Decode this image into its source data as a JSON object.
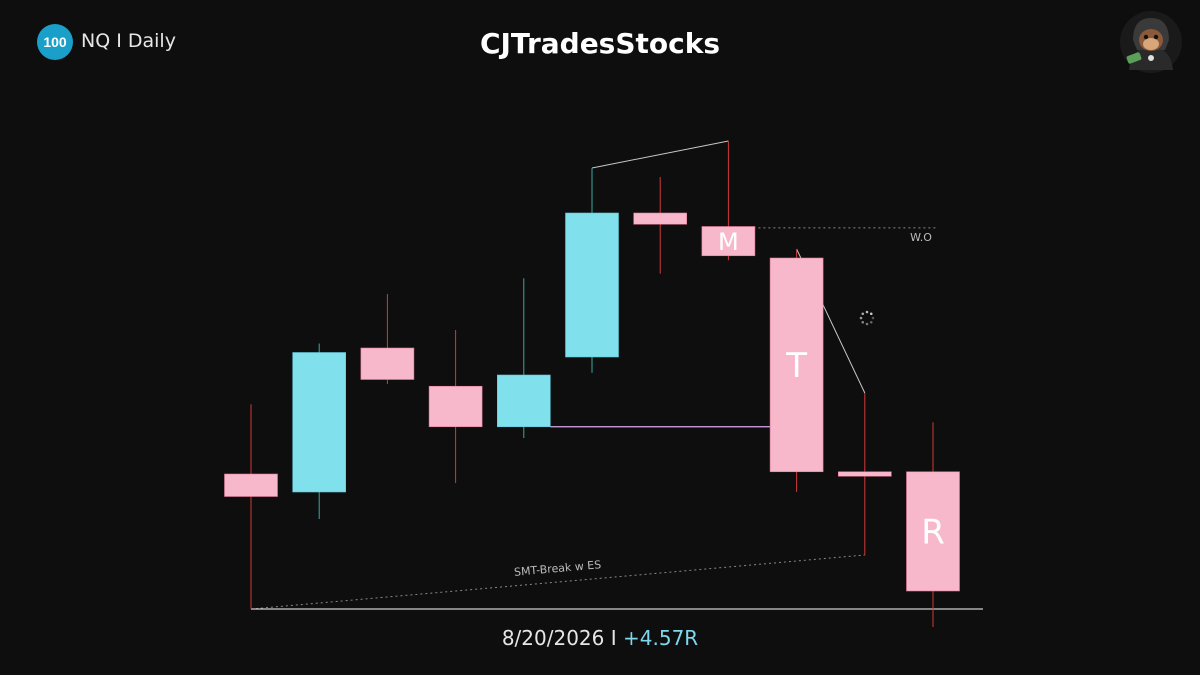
{
  "header": {
    "badge": "100",
    "symbol": "NQ",
    "separator": "I",
    "timeframe": "Daily",
    "title": "CJTradesStocks"
  },
  "footer": {
    "date": "8/20/2026",
    "separator": "I",
    "result": "+4.57R"
  },
  "colors": {
    "background": "#0e0e0e",
    "bull": "#80e0ec",
    "bear": "#f8b8cc",
    "wick_bull": "#3aa8a0",
    "wick_bear": "#d03a3a",
    "badge": "#1aa0c8",
    "result": "#7fd7ee"
  },
  "chart_data": {
    "type": "candlestick",
    "title": "CJTradesStocks",
    "xlabel": "",
    "ylabel": "",
    "ylim": [
      0,
      100
    ],
    "candles": [
      {
        "index": 0,
        "open": 25.0,
        "high": 45.5,
        "low": 0.0,
        "close": 30.0,
        "direction": "bear"
      },
      {
        "index": 1,
        "open": 26.0,
        "high": 59.0,
        "low": 20.0,
        "close": 57.0,
        "direction": "bull"
      },
      {
        "index": 2,
        "open": 58.0,
        "high": 70.0,
        "low": 50.0,
        "close": 51.0,
        "direction": "bear"
      },
      {
        "index": 3,
        "open": 49.5,
        "high": 62.0,
        "low": 28.0,
        "close": 40.5,
        "direction": "bear"
      },
      {
        "index": 4,
        "open": 40.5,
        "high": 73.5,
        "low": 38.0,
        "close": 52.0,
        "direction": "bull"
      },
      {
        "index": 5,
        "open": 56.0,
        "high": 98.0,
        "low": 52.5,
        "close": 88.0,
        "direction": "bull",
        "label": ""
      },
      {
        "index": 6,
        "open": 88.0,
        "high": 96.0,
        "low": 74.5,
        "close": 85.5,
        "direction": "bear"
      },
      {
        "index": 7,
        "open": 85.0,
        "high": 104.0,
        "low": 77.5,
        "close": 78.5,
        "direction": "bear",
        "label": "M"
      },
      {
        "index": 8,
        "open": 78.0,
        "high": 80.0,
        "low": 26.0,
        "close": 30.5,
        "direction": "bear",
        "label": "T"
      },
      {
        "index": 9,
        "open": 30.5,
        "high": 48.0,
        "low": 12.0,
        "close": 29.5,
        "direction": "bear"
      },
      {
        "index": 10,
        "open": 30.5,
        "high": 41.5,
        "low": -4.0,
        "close": 4.0,
        "direction": "bear",
        "label": "R"
      }
    ],
    "annotations": [
      {
        "type": "trendline",
        "label": "",
        "from": {
          "index": 5,
          "value": 98.0
        },
        "to": {
          "index": 7,
          "value": 104.0
        }
      },
      {
        "type": "horizontal-dotted",
        "label": "W.O",
        "from": {
          "index": 7,
          "value": 84.7
        },
        "to": {
          "index": 10,
          "value": 84.7
        }
      },
      {
        "type": "horizontal",
        "label": "",
        "from": {
          "index": 4,
          "value": 40.5
        },
        "to": {
          "index": 8,
          "value": 40.5
        }
      },
      {
        "type": "trendline",
        "label": "",
        "from": {
          "index": 8,
          "value": 80.0
        },
        "to": {
          "index": 9,
          "value": 48.0
        }
      },
      {
        "type": "dotted-trendline",
        "label": "SMT-Break w ES",
        "from": {
          "index": 0,
          "value": 0.0
        },
        "to": {
          "index": 9,
          "value": 12.0
        }
      },
      {
        "type": "horizontal",
        "label": "",
        "from": {
          "index": 0,
          "value": 0.0
        },
        "to": {
          "index": 10,
          "value": 0.0
        }
      }
    ]
  }
}
